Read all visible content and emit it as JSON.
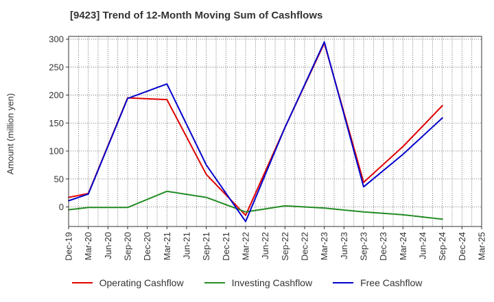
{
  "chart_data": {
    "type": "line",
    "title": "[9423]  Trend of 12-Month Moving Sum of Cashflows",
    "ylabel": "Amount (million yen)",
    "xlabel": "",
    "x": [
      "Dec-19",
      "Mar-20",
      "Jun-20",
      "Sep-20",
      "Dec-20",
      "Mar-21",
      "Jun-21",
      "Sep-21",
      "Dec-21",
      "Mar-22",
      "Jun-22",
      "Sep-22",
      "Dec-22",
      "Mar-23",
      "Jun-23",
      "Sep-23",
      "Dec-23",
      "Mar-24",
      "Jun-24",
      "Sep-24",
      "Dec-24",
      "Mar-25"
    ],
    "ylim": [
      -35,
      305
    ],
    "yticks": [
      0,
      50,
      100,
      150,
      200,
      250,
      300
    ],
    "grid": true,
    "legend": "bottom",
    "series": [
      {
        "name": "Operating Cashflow",
        "color": "#e00000",
        "values": [
          17,
          24,
          null,
          195,
          null,
          192,
          null,
          58,
          null,
          -15,
          null,
          142,
          null,
          293,
          null,
          44,
          null,
          108,
          null,
          181,
          null,
          null
        ]
      },
      {
        "name": "Investing Cashflow",
        "color": "#228b22",
        "values": [
          -5,
          -1,
          null,
          -1,
          null,
          28,
          null,
          17,
          null,
          -9,
          null,
          2,
          null,
          -2,
          null,
          -9,
          null,
          -14,
          null,
          -22,
          null,
          null
        ]
      },
      {
        "name": "Free Cashflow",
        "color": "#0000cc",
        "values": [
          11,
          23,
          null,
          194,
          null,
          220,
          null,
          75,
          null,
          -26,
          null,
          142,
          null,
          295,
          null,
          36,
          null,
          94,
          null,
          159,
          null,
          null
        ]
      }
    ]
  }
}
